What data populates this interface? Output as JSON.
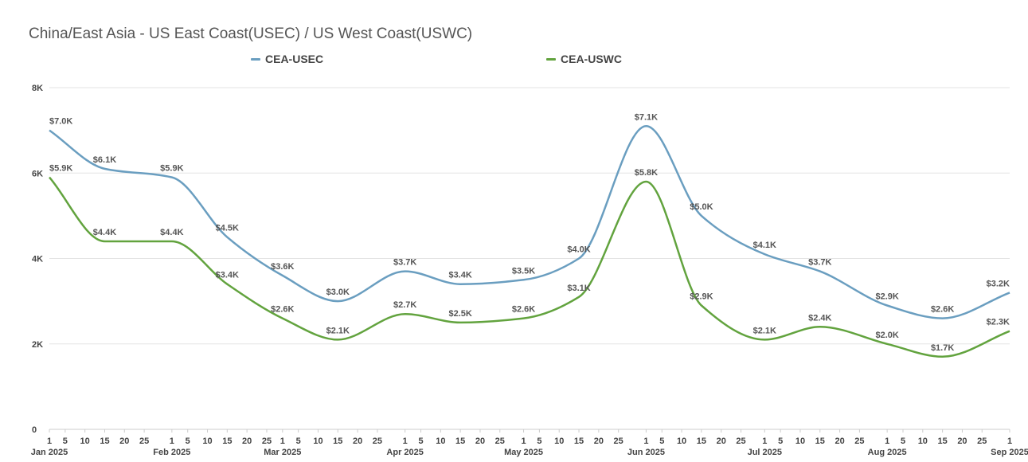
{
  "chart_data": {
    "type": "line",
    "title": "China/East Asia - US East Coast(USEC) / US West Coast(USWC)",
    "xlabel": "",
    "ylabel": "",
    "ylim": [
      0,
      8000
    ],
    "yticks": [
      {
        "value": 0,
        "label": "0"
      },
      {
        "value": 2000,
        "label": "2K"
      },
      {
        "value": 4000,
        "label": "4K"
      },
      {
        "value": 6000,
        "label": "6K"
      },
      {
        "value": 8000,
        "label": "8K"
      }
    ],
    "x_dates": [
      "2025-01-01",
      "2025-01-15",
      "2025-02-01",
      "2025-02-15",
      "2025-03-01",
      "2025-03-15",
      "2025-04-01",
      "2025-04-15",
      "2025-05-01",
      "2025-05-15",
      "2025-06-01",
      "2025-06-15",
      "2025-07-01",
      "2025-07-15",
      "2025-08-01",
      "2025-08-15",
      "2025-09-01"
    ],
    "xlim": [
      "2025-01-01",
      "2025-09-01"
    ],
    "x_day_ticks": [
      "1",
      "5",
      "10",
      "15",
      "20",
      "25"
    ],
    "months": [
      {
        "date": "2025-01-01",
        "label": "Jan 2025"
      },
      {
        "date": "2025-02-01",
        "label": "Feb 2025"
      },
      {
        "date": "2025-03-01",
        "label": "Mar 2025"
      },
      {
        "date": "2025-04-01",
        "label": "Apr 2025"
      },
      {
        "date": "2025-05-01",
        "label": "May 2025"
      },
      {
        "date": "2025-06-01",
        "label": "Jun 2025"
      },
      {
        "date": "2025-07-01",
        "label": "Jul 2025"
      },
      {
        "date": "2025-08-01",
        "label": "Aug 2025"
      },
      {
        "date": "2025-09-01",
        "label": "Sep 2025"
      }
    ],
    "grid": true,
    "legend_position": "top-center",
    "series": [
      {
        "name": "CEA-USEC",
        "color": "#6a9ec0",
        "values": [
          7000,
          6100,
          5900,
          4500,
          3600,
          3000,
          3700,
          3400,
          3500,
          4000,
          7100,
          5000,
          4100,
          3700,
          2900,
          2600,
          3200
        ],
        "labels": [
          "$7.0K",
          "$6.1K",
          "$5.9K",
          "$4.5K",
          "$3.6K",
          "$3.0K",
          "$3.7K",
          "$3.4K",
          "$3.5K",
          "$4.0K",
          "$7.1K",
          "$5.0K",
          "$4.1K",
          "$3.7K",
          "$2.9K",
          "$2.6K",
          "$3.2K"
        ]
      },
      {
        "name": "CEA-USWC",
        "color": "#62a33e",
        "values": [
          5900,
          4400,
          4400,
          3400,
          2600,
          2100,
          2700,
          2500,
          2600,
          3100,
          5800,
          2900,
          2100,
          2400,
          2000,
          1700,
          2300
        ],
        "labels": [
          "$5.9K",
          "$4.4K",
          "$4.4K",
          "$3.4K",
          "$2.6K",
          "$2.1K",
          "$2.7K",
          "$2.5K",
          "$2.6K",
          "$3.1K",
          "$5.8K",
          "$2.9K",
          "$2.1K",
          "$2.4K",
          "$2.0K",
          "$1.7K",
          "$2.3K"
        ]
      }
    ]
  }
}
